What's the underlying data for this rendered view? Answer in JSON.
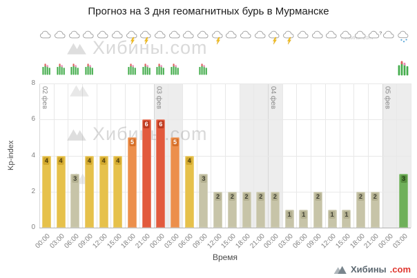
{
  "title": "Прогноз на 3 дня геомагнитных бурь в Мурманске",
  "watermark_text": "Хибины.com",
  "footer": {
    "brand": "Хибины",
    "suffix": ".com",
    "brand_color": "#5b6770",
    "suffix_color": "#e0362f"
  },
  "chart_data": {
    "type": "bar",
    "title": "Прогноз на 3 дня геомагнитных бурь в Мурманске",
    "xlabel": "Время",
    "ylabel": "Kp-index",
    "ylim": [
      0,
      8
    ],
    "yticks": [
      0,
      2,
      4,
      6,
      8
    ],
    "grid": true,
    "legend": false,
    "categories": [
      "00:00",
      "03:00",
      "06:00",
      "09:00",
      "12:00",
      "15:00",
      "18:00",
      "21:00",
      "00:00",
      "03:00",
      "06:00",
      "09:00",
      "12:00",
      "15:00",
      "18:00",
      "21:00",
      "00:00",
      "03:00",
      "06:00",
      "09:00",
      "12:00",
      "15:00",
      "18:00",
      "21:00",
      "00:00",
      "03:00"
    ],
    "values": [
      4,
      4,
      3,
      4,
      4,
      4,
      5,
      6,
      6,
      5,
      4,
      3,
      2,
      2,
      2,
      2,
      2,
      1,
      1,
      2,
      1,
      1,
      2,
      2,
      null,
      3
    ],
    "bar_palette_keys": [
      "yellow",
      "yellow",
      "tan",
      "yellow",
      "yellow",
      "yellow",
      "orange",
      "red",
      "red",
      "orange",
      "yellow",
      "tan",
      "tan",
      "tan",
      "tan",
      "tan",
      "tan",
      "tan",
      "tan",
      "tan",
      "tan",
      "tan",
      "tan",
      "tan",
      null,
      "green"
    ],
    "palette": {
      "tan": {
        "bar": "#c7c4a8",
        "label_bg": "#b4b192",
        "label_fg": "#3d3d2f"
      },
      "yellow": {
        "bar": "#e6c14b",
        "label_bg": "#d1a82e",
        "label_fg": "#47380a"
      },
      "orange": {
        "bar": "#ec8f4c",
        "label_bg": "#d66f28",
        "label_fg": "#ffffff"
      },
      "red": {
        "bar": "#e25a3d",
        "label_bg": "#bc3a20",
        "label_fg": "#ffffff"
      },
      "green": {
        "bar": "#6fb05a",
        "label_bg": "#578f3f",
        "label_fg": "#1d3a12"
      }
    },
    "day_labels": [
      {
        "label": "02 фев",
        "slot": 0
      },
      {
        "label": "03 фев",
        "slot": 8
      },
      {
        "label": "04 фев",
        "slot": 16
      },
      {
        "label": "05 фев",
        "slot": 24
      }
    ],
    "shaded_bands": [
      {
        "from_slot": 8,
        "to_slot": 10
      },
      {
        "from_slot": 14,
        "to_slot": 17
      },
      {
        "from_slot": 24,
        "to_slot": 26
      }
    ],
    "axis_color": "#b3b3b3",
    "grid_color": "#e8e8e8",
    "tick_color": "#808080"
  },
  "icons": {
    "weather_row": [
      "cloud",
      "cloud",
      "cloud",
      "cloud",
      "cloud",
      "cloud",
      "cloud-lightning",
      "cloud-lightning",
      "cloud",
      "cloud",
      "cloud",
      "cloud",
      "cloud-lightning",
      "cloud",
      "cloud",
      "cloud",
      "cloud-lightning",
      "cloud-lightning",
      "cloud",
      "cloud",
      "cloud",
      "cloud",
      "cloud",
      "cloud-question",
      "cloud",
      "cloud-snow"
    ],
    "aurora": [
      {
        "slot": 0
      },
      {
        "slot": 1
      },
      {
        "slot": 2
      },
      {
        "slot": 3
      },
      {
        "slot": 6
      },
      {
        "slot": 7
      },
      {
        "slot": 8
      },
      {
        "slot": 9
      },
      {
        "slot": 11
      },
      {
        "slot": 25,
        "size": "large"
      }
    ]
  }
}
